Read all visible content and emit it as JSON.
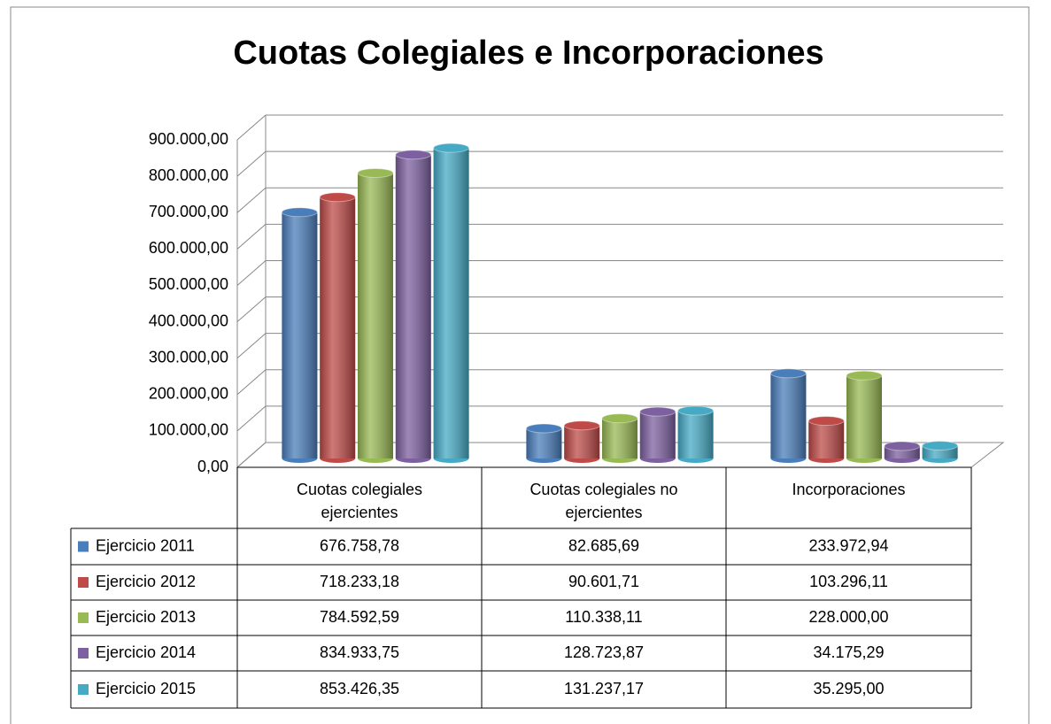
{
  "chart_data": {
    "type": "bar3d",
    "title": "Cuotas Colegiales e Incorporaciones",
    "categories": [
      "Cuotas colegiales ejercientes",
      "Cuotas colegiales no ejercientes",
      "Incorporaciones"
    ],
    "series": [
      {
        "name": "Ejercicio 2011",
        "color": "#4a7ebb",
        "values": [
          676758.78,
          82685.69,
          233972.94
        ],
        "value_labels": [
          "676.758,78",
          "82.685,69",
          "233.972,94"
        ]
      },
      {
        "name": "Ejercicio 2012",
        "color": "#be4b48",
        "values": [
          718233.18,
          90601.71,
          103296.11
        ],
        "value_labels": [
          "718.233,18",
          "90.601,71",
          "103.296,11"
        ]
      },
      {
        "name": "Ejercicio 2013",
        "color": "#98b954",
        "values": [
          784592.59,
          110338.11,
          228000.0
        ],
        "value_labels": [
          "784.592,59",
          "110.338,11",
          "228.000,00"
        ]
      },
      {
        "name": "Ejercicio 2014",
        "color": "#7d60a0",
        "values": [
          834933.75,
          128723.87,
          34175.29
        ],
        "value_labels": [
          "834.933,75",
          "128.723,87",
          "34.175,29"
        ]
      },
      {
        "name": "Ejercicio 2015",
        "color": "#46aac5",
        "values": [
          853426.35,
          131237.17,
          35295.0
        ],
        "value_labels": [
          "853.426,35",
          "131.237,17",
          "35.295,00"
        ]
      }
    ],
    "ylim": [
      0,
      900000
    ],
    "yticks": [
      {
        "value": 0,
        "label": "0,00"
      },
      {
        "value": 100000,
        "label": "100.000,00"
      },
      {
        "value": 200000,
        "label": "200.000,00"
      },
      {
        "value": 300000,
        "label": "300.000,00"
      },
      {
        "value": 400000,
        "label": "400.000,00"
      },
      {
        "value": 500000,
        "label": "500.000,00"
      },
      {
        "value": 600000,
        "label": "600.000,00"
      },
      {
        "value": 700000,
        "label": "700.000,00"
      },
      {
        "value": 800000,
        "label": "800.000,00"
      },
      {
        "value": 900000,
        "label": "900.000,00"
      }
    ],
    "grid": true
  }
}
